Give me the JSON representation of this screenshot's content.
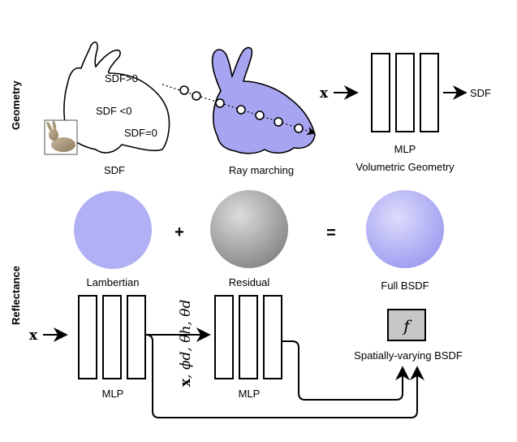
{
  "sections": {
    "geometry": "Geometry",
    "reflectance": "Reflectance"
  },
  "geometry": {
    "sdf_labels": {
      "positive": "SDF>0",
      "negative": "SDF <0",
      "zero": "SDF=0"
    },
    "sdf_caption": "SDF",
    "ray_caption": "Ray marching",
    "mlp_input": "x",
    "mlp_output": "SDF",
    "mlp_label": "MLP",
    "mlp_caption": "Volumetric Geometry"
  },
  "reflectance": {
    "plus": "+",
    "equals": "=",
    "spheres": [
      "Lambertian",
      "Residual",
      "Full BSDF"
    ],
    "mlp1_input": "x",
    "mlp1_label": "MLP",
    "mlp2_input_x": "x",
    "mlp2_input_rest": ", ϕd, θh, θd",
    "mlp2_label": "MLP",
    "bsdf_symbol": "f",
    "bsdf_caption": "Spatially-varying BSDF"
  },
  "colors": {
    "bunny_fill": "#a7a4f1",
    "lambertian": "#b1b0f4",
    "residual_light": "#d8d8d8",
    "residual_dark": "#8c8c8c",
    "full_bsdf_light": "#d6d6fb",
    "full_bsdf_dark": "#9f9cf0",
    "f_box": "#c7c7c7"
  }
}
